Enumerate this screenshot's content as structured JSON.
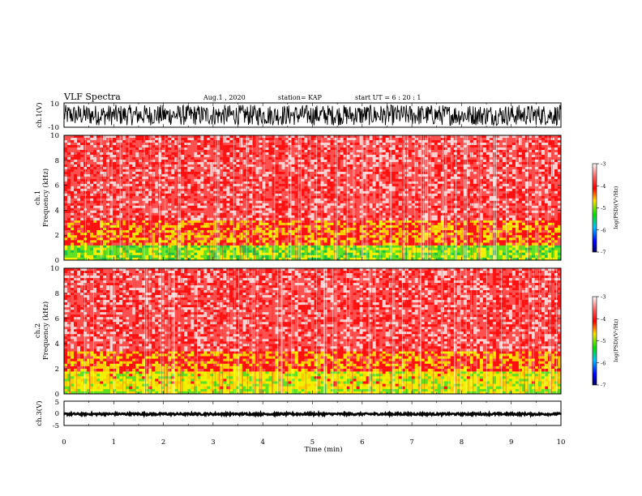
{
  "header": {
    "title": "VLF Spectra",
    "date": "Aug.1 , 2020",
    "station": "station= KAP",
    "start": "start UT = 6 : 20 : 1"
  },
  "chart_data": [
    {
      "type": "line",
      "ylabel": "ch.1(V)",
      "xlim": [
        0,
        10
      ],
      "ylim": [
        -10,
        10
      ],
      "yticks": [
        "10",
        "-10"
      ],
      "description_values": {
        "min_approx": -10,
        "max_approx": 10
      }
    },
    {
      "type": "heatmap",
      "ylabel_channel": "ch.1",
      "ylabel": "Frequency (kHz)",
      "xlim": [
        0,
        10
      ],
      "ylim": [
        0,
        10
      ],
      "yticks": [
        "0",
        "2",
        "4",
        "6",
        "8",
        "10"
      ],
      "colorbar": {
        "label": "log(PSD)(V²/Hz)",
        "ticks": [
          "-3",
          "-4",
          "-5",
          "-6",
          "-7"
        ],
        "range": [
          -7,
          -3
        ]
      },
      "bands": [
        {
          "from_khz": 0.0,
          "to_khz": 1.2,
          "level": -5.3
        },
        {
          "from_khz": 1.2,
          "to_khz": 3.2,
          "level": -4.2
        },
        {
          "from_khz": 3.2,
          "to_khz": 10.0,
          "level": -3.6
        }
      ]
    },
    {
      "type": "heatmap",
      "ylabel_channel": "ch.2",
      "ylabel": "Frequency (kHz)",
      "xlim": [
        0,
        10
      ],
      "ylim": [
        0,
        10
      ],
      "yticks": [
        "0",
        "2",
        "4",
        "6",
        "8",
        "10"
      ],
      "colorbar": {
        "label": "log(PSD)(V²/Hz)",
        "ticks": [
          "-3",
          "-4",
          "-5",
          "-6",
          "-7"
        ],
        "range": [
          -7,
          -3
        ]
      },
      "bands": [
        {
          "from_khz": 0.0,
          "to_khz": 0.4,
          "level": -5.0
        },
        {
          "from_khz": 0.4,
          "to_khz": 1.8,
          "level": -4.8
        },
        {
          "from_khz": 1.8,
          "to_khz": 3.4,
          "level": -4.2
        },
        {
          "from_khz": 3.4,
          "to_khz": 10.0,
          "level": -3.6
        }
      ]
    },
    {
      "type": "line",
      "ylabel": "ch.3(V)",
      "xlim": [
        0,
        10
      ],
      "ylim": [
        -5,
        5
      ],
      "yticks": [
        "5",
        "0",
        "-5"
      ],
      "xlabel": "Time (min)",
      "xticks": [
        "0",
        "1",
        "2",
        "3",
        "4",
        "5",
        "6",
        "7",
        "8",
        "9",
        "10"
      ],
      "description_values": {
        "min_approx": -0.8,
        "max_approx": 0.2
      }
    }
  ],
  "colors": {
    "trace": "#000000",
    "high": "#ff2020",
    "mid": "#ffd000",
    "low": "#40e040",
    "background": "#ffffff"
  }
}
